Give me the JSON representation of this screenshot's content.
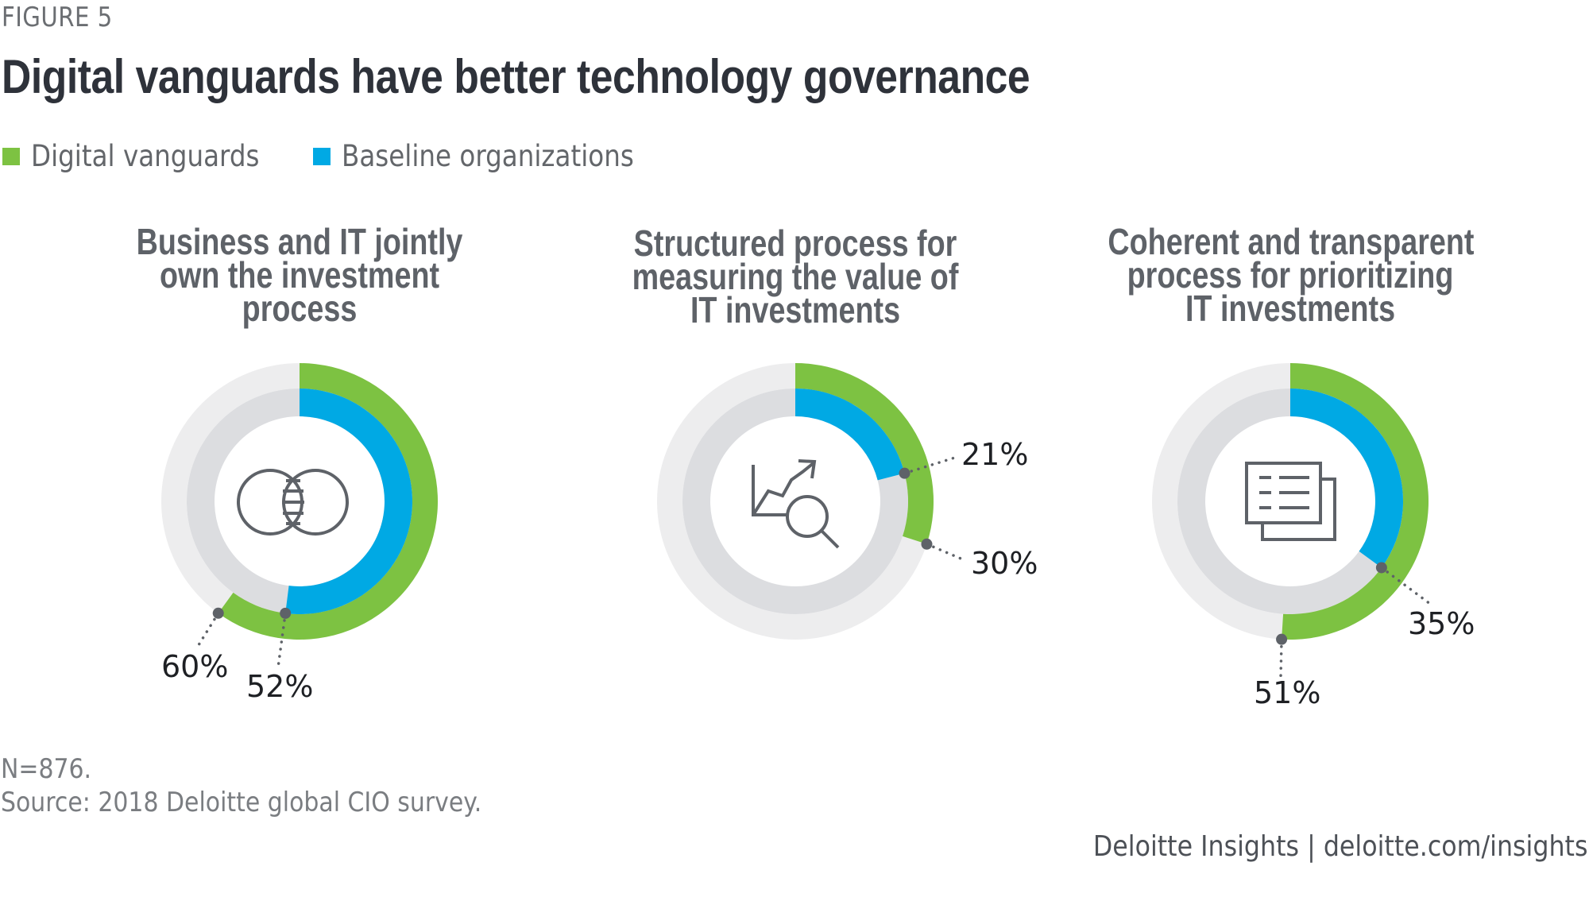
{
  "figure_label": "FIGURE 5",
  "title": "Digital vanguards have better technology governance",
  "legend": [
    {
      "label": "Digital vanguards",
      "color": "#7dc242"
    },
    {
      "label": "Baseline organizations",
      "color": "#00a9e4"
    }
  ],
  "colors": {
    "vanguard": "#7dc242",
    "baseline": "#00a9e4",
    "track_outer": "#ededee",
    "track_inner": "#dcdde0",
    "icon": "#5e6268",
    "leader": "#5e6268"
  },
  "chart_data": {
    "type": "pie",
    "subtype": "concentric-donut",
    "title": "Digital vanguards have better technology governance",
    "series_names": [
      "Digital vanguards",
      "Baseline organizations"
    ],
    "charts": [
      {
        "title_lines": [
          "Business and IT jointly",
          "own the investment",
          "process"
        ],
        "icon": "venn-diagram-icon",
        "values": {
          "Digital vanguards": 60,
          "Baseline organizations": 52
        },
        "labels": {
          "Digital vanguards": "60%",
          "Baseline organizations": "52%"
        }
      },
      {
        "title_lines": [
          "Structured process for",
          "measuring the value of",
          "IT investments"
        ],
        "icon": "chart-magnifier-icon",
        "values": {
          "Digital vanguards": 30,
          "Baseline organizations": 21
        },
        "labels": {
          "Digital vanguards": "30%",
          "Baseline organizations": "21%"
        }
      },
      {
        "title_lines": [
          "Coherent and transparent",
          "process for prioritizing",
          "IT investments"
        ],
        "icon": "documents-icon",
        "values": {
          "Digital vanguards": 51,
          "Baseline organizations": 35
        },
        "labels": {
          "Digital vanguards": "51%",
          "Baseline organizations": "35%"
        }
      }
    ],
    "unit": "%",
    "range": [
      0,
      100
    ]
  },
  "footnotes": {
    "n": "N=876.",
    "source": "Source: 2018 Deloitte global CIO survey."
  },
  "credit": "Deloitte Insights | deloitte.com/insights"
}
